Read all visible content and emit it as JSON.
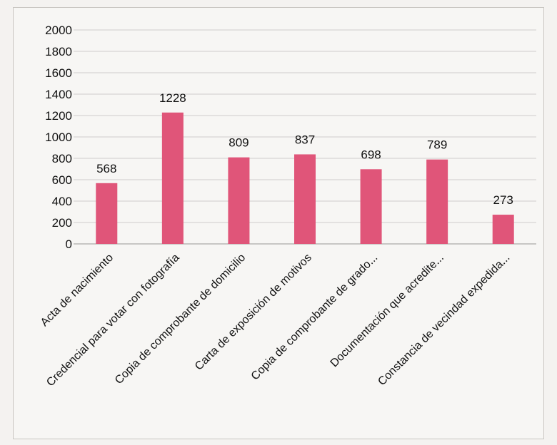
{
  "chart_data": {
    "type": "bar",
    "categories": [
      "Acta de nacimiento",
      "Credencial para votar con fotografía",
      "Copia de comprobante de domicilio",
      "Carta de exposición de motivos",
      "Copia de comprobante de grado...",
      "Documentación que acredite...",
      "Constancia de vecindad expedida..."
    ],
    "values": [
      568,
      1228,
      809,
      837,
      698,
      789,
      273
    ],
    "data_labels": [
      "568",
      "1228",
      "809",
      "837",
      "698",
      "789",
      "273"
    ],
    "ylim": [
      0,
      2000
    ],
    "yticks": [
      0,
      200,
      400,
      600,
      800,
      1000,
      1200,
      1400,
      1600,
      1800,
      2000
    ],
    "ytick_labels": [
      "0",
      "200",
      "400",
      "600",
      "800",
      "1000",
      "1200",
      "1400",
      "1600",
      "1800",
      "2000"
    ],
    "grid": true,
    "legend": false,
    "colors": {
      "bar": "#e05579",
      "background": "#f7f6f4"
    }
  }
}
